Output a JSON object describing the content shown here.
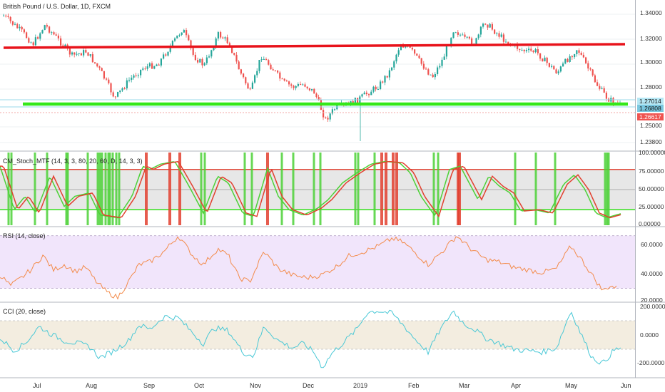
{
  "colors": {
    "bull": "#26a69a",
    "bear": "#ef5350",
    "resistance_line": "#e8131b",
    "support_line": "#34e81a",
    "stoch_fast": "#4cd137",
    "stoch_slow": "#e2402f",
    "stoch_upper": "#e24a3b",
    "stoch_lower": "#33e21a",
    "rsi_line": "#f38b4a",
    "rsi_band": "#f1e5fb",
    "cci_line": "#49c8d6",
    "cci_band": "#f3ede0",
    "price_badge_a": "#b6e8f5",
    "price_badge_b": "#7bc8e0",
    "price_badge_c": "#ef5350"
  },
  "main_pane": {
    "title": "British Pound / U.S. Dollar, 1D, FXCM",
    "y_ticks": [
      "1.34000",
      "1.32000",
      "1.30000",
      "1.28000",
      "1.25000",
      "1.23800"
    ],
    "price_badges": [
      "1.27014",
      "1.26808",
      "1.26617"
    ]
  },
  "stoch_pane": {
    "title": "CM_Stoch_MTF (14, 3, 3, 80, 20, 60, D, 14, 3, 3)",
    "y_ticks": [
      "100.00000",
      "75.00000",
      "50.00000",
      "25.00000",
      "0.00000"
    ]
  },
  "rsi_pane": {
    "title": "RSI (14, close)",
    "y_ticks": [
      "60.0000",
      "40.0000",
      "20.0000"
    ]
  },
  "cci_pane": {
    "title": "CCI (20, close)",
    "y_ticks": [
      "200.0000",
      "0.0000",
      "-200.0000"
    ]
  },
  "x_axis": {
    "labels": [
      "Jul",
      "Aug",
      "Sep",
      "Oct",
      "Nov",
      "Dec",
      "2019",
      "Feb",
      "Mar",
      "Apr",
      "May",
      "Jun"
    ]
  }
}
